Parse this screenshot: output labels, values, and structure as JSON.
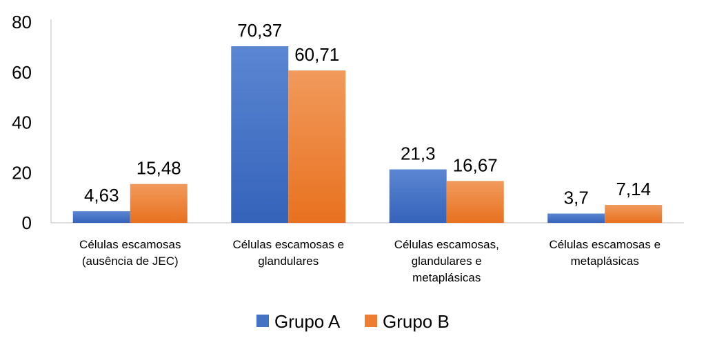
{
  "chart_data": {
    "type": "bar",
    "categories": [
      [
        "Células escamosas",
        "(ausência de JEC)"
      ],
      [
        "Células escamosas e",
        "glandulares"
      ],
      [
        "Células escamosas,",
        "glandulares e",
        "metaplásicas"
      ],
      [
        "Células escamosas e",
        "metaplásicas"
      ]
    ],
    "series": [
      {
        "name": "Grupo A",
        "values": [
          4.63,
          70.37,
          21.3,
          3.7
        ],
        "labels": [
          "4,63",
          "70,37",
          "21,3",
          "3,7"
        ],
        "color": "#4472C4"
      },
      {
        "name": "Grupo B",
        "values": [
          15.48,
          60.71,
          16.67,
          7.14
        ],
        "labels": [
          "15,48",
          "60,71",
          "16,67",
          "7,14"
        ],
        "color": "#ED7D31"
      }
    ],
    "ylim": [
      0,
      80
    ],
    "yticks": [
      0,
      20,
      40,
      60,
      80
    ],
    "grid": false,
    "legend_position": "bottom"
  }
}
